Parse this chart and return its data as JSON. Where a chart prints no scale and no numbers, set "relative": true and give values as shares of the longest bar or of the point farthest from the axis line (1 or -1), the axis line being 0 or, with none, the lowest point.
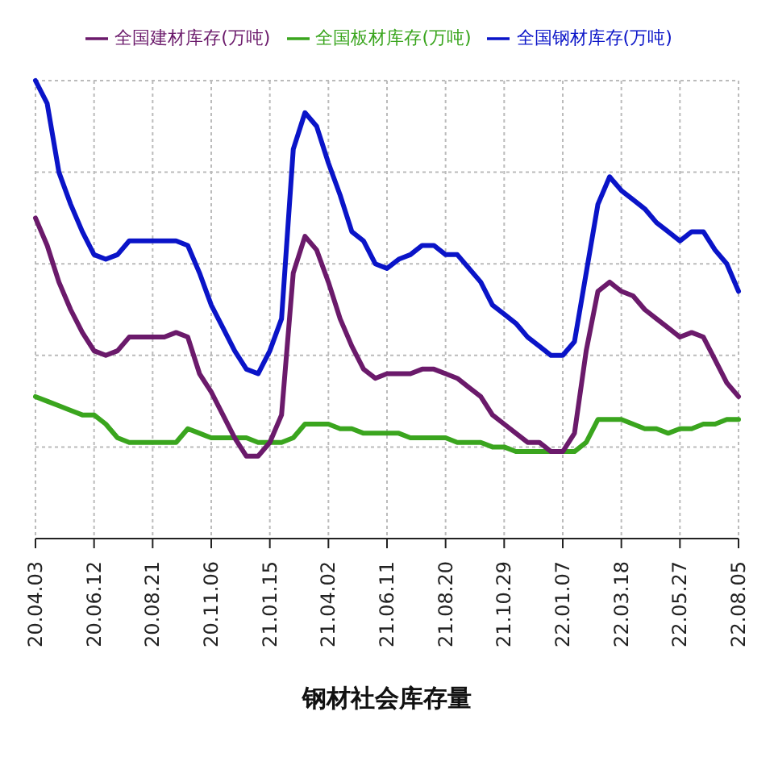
{
  "chart_data": {
    "type": "line",
    "relative": true,
    "xlabel": "钢材社会库存量",
    "legend": "top",
    "grid": true,
    "marker": "none",
    "line_style": "solid",
    "categories": [
      "20.04.03",
      null,
      null,
      null,
      null,
      "20.06.12",
      null,
      null,
      null,
      null,
      "20.08.21",
      null,
      null,
      null,
      null,
      "20.11.06",
      null,
      null,
      null,
      null,
      "21.01.15",
      null,
      null,
      null,
      null,
      "21.04.02",
      null,
      null,
      null,
      null,
      "21.06.11",
      null,
      null,
      null,
      null,
      "21.08.20",
      null,
      null,
      null,
      null,
      "21.10.29",
      null,
      null,
      null,
      null,
      "22.01.07",
      null,
      null,
      null,
      null,
      "22.03.18",
      null,
      null,
      null,
      null,
      "22.05.27",
      null,
      null,
      null,
      null,
      "22.08.05"
    ],
    "series": [
      {
        "name": "全国板材库存(万吨)",
        "color": "#3aa51e",
        "values": [
          0.31,
          0.3,
          0.29,
          0.28,
          0.27,
          0.27,
          0.25,
          0.22,
          0.21,
          0.21,
          0.21,
          0.21,
          0.21,
          0.24,
          0.23,
          0.22,
          0.22,
          0.22,
          0.22,
          0.21,
          0.21,
          0.21,
          0.22,
          0.25,
          0.25,
          0.25,
          0.24,
          0.24,
          0.23,
          0.23,
          0.23,
          0.23,
          0.22,
          0.22,
          0.22,
          0.22,
          0.21,
          0.21,
          0.21,
          0.2,
          0.2,
          0.19,
          0.19,
          0.19,
          0.19,
          0.19,
          0.19,
          0.21,
          0.26,
          0.26,
          0.26,
          0.25,
          0.24,
          0.24,
          0.23,
          0.24,
          0.24,
          0.25,
          0.25,
          0.26,
          0.26
        ]
      },
      {
        "name": "全国钢材库存(万吨)",
        "color": "#0a14c8",
        "values": [
          1.0,
          0.95,
          0.8,
          0.73,
          0.67,
          0.62,
          0.61,
          0.62,
          0.65,
          0.65,
          0.65,
          0.65,
          0.65,
          0.64,
          0.58,
          0.51,
          0.46,
          0.41,
          0.37,
          0.36,
          0.41,
          0.48,
          0.85,
          0.93,
          0.9,
          0.82,
          0.75,
          0.67,
          0.65,
          0.6,
          0.59,
          0.61,
          0.62,
          0.64,
          0.64,
          0.62,
          0.62,
          0.59,
          0.56,
          0.51,
          0.49,
          0.47,
          0.44,
          0.42,
          0.4,
          0.4,
          0.43,
          0.58,
          0.73,
          0.79,
          0.76,
          0.74,
          0.72,
          0.69,
          0.67,
          0.65,
          0.67,
          0.67,
          0.63,
          0.6,
          0.54
        ]
      },
      {
        "name": "全国建材库存(万吨)",
        "color": "#6b1a6b",
        "values": [
          0.7,
          0.64,
          0.56,
          0.5,
          0.45,
          0.41,
          0.4,
          0.41,
          0.44,
          0.44,
          0.44,
          0.44,
          0.45,
          0.44,
          0.36,
          0.32,
          0.27,
          0.22,
          0.18,
          0.18,
          0.21,
          0.27,
          0.58,
          0.66,
          0.63,
          0.56,
          0.48,
          0.42,
          0.37,
          0.35,
          0.36,
          0.36,
          0.36,
          0.37,
          0.37,
          0.36,
          0.35,
          0.33,
          0.31,
          0.27,
          0.25,
          0.23,
          0.21,
          0.21,
          0.19,
          0.19,
          0.23,
          0.41,
          0.54,
          0.56,
          0.54,
          0.53,
          0.5,
          0.48,
          0.46,
          0.44,
          0.45,
          0.44,
          0.39,
          0.34,
          0.31
        ]
      }
    ]
  }
}
